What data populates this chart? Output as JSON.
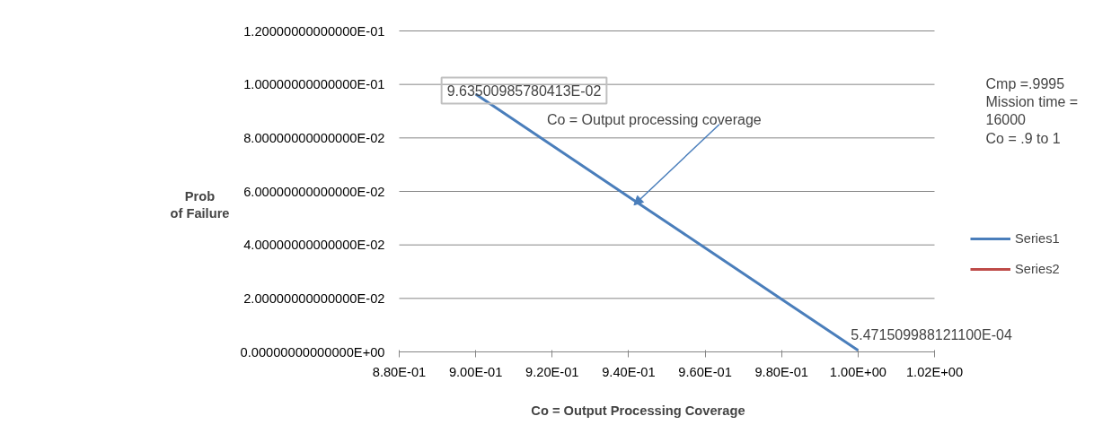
{
  "chart_data": {
    "type": "line",
    "xlabel": "Co  = Output Processing Coverage",
    "ylabel": "Prob\nof Failure",
    "x": [
      0.9,
      0.92,
      0.94,
      0.96,
      0.98,
      1.0
    ],
    "series": [
      {
        "name": "Series1",
        "color": "#4a7ebb",
        "values": [
          0.0963500985780413,
          0.0772,
          0.058,
          0.0389,
          0.0197,
          0.00054715099881211
        ],
        "value_labels": [
          "9.63500985780413E-02",
          null,
          null,
          null,
          null,
          "5.471509988121100E-04"
        ]
      },
      {
        "name": "Series2",
        "color": "#be4b48",
        "values": [
          null,
          null,
          null,
          null,
          null,
          null
        ]
      }
    ],
    "xlim": [
      0.88,
      1.02
    ],
    "xticks": [
      {
        "value": 0.88,
        "label": "8.80E-01"
      },
      {
        "value": 0.9,
        "label": "9.00E-01"
      },
      {
        "value": 0.92,
        "label": "9.20E-01"
      },
      {
        "value": 0.94,
        "label": "9.40E-01"
      },
      {
        "value": 0.96,
        "label": "9.60E-01"
      },
      {
        "value": 0.98,
        "label": "9.80E-01"
      },
      {
        "value": 1.0,
        "label": "1.00E+00"
      },
      {
        "value": 1.02,
        "label": "1.02E+00"
      }
    ],
    "ylim": [
      0,
      0.12
    ],
    "yticks": [
      {
        "value": 0,
        "label": "0.00000000000000E+00"
      },
      {
        "value": 0.02,
        "label": "2.00000000000000E-02"
      },
      {
        "value": 0.04,
        "label": "4.00000000000000E-02"
      },
      {
        "value": 0.06,
        "label": "6.00000000000000E-02"
      },
      {
        "value": 0.08,
        "label": "8.00000000000000E-02"
      },
      {
        "value": 0.1,
        "label": "1.00000000000000E-01"
      },
      {
        "value": 0.12,
        "label": "1.20000000000000E-01"
      }
    ],
    "annotations": [
      {
        "text": "Co = Output processing coverage",
        "x": 0.9414,
        "y": 0.0549
      },
      "Cmp =.9995\nMission time =\n16000\nCo = .9 to 1"
    ],
    "grid": "y",
    "legend": "right",
    "marker": "none",
    "line_style": "solid"
  }
}
